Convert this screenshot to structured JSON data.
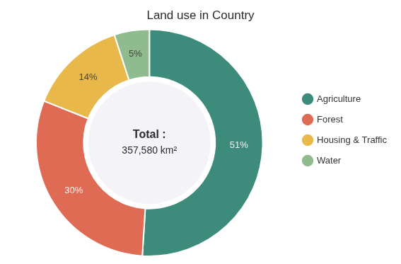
{
  "chart_data": {
    "type": "doughnut",
    "title": "Land use in Country",
    "categories": [
      "Agriculture",
      "Forest",
      "Housing & Traffic",
      "Water"
    ],
    "values": [
      51,
      30,
      14,
      5
    ],
    "value_labels": [
      "51%",
      "30%",
      "14%",
      "5%"
    ],
    "colors": [
      "#3d8b7a",
      "#e06b55",
      "#e8b84b",
      "#8fbb8f"
    ],
    "data_labels": true,
    "legend": "right",
    "annotations": [
      "Total :",
      "357,580 km²"
    ]
  }
}
